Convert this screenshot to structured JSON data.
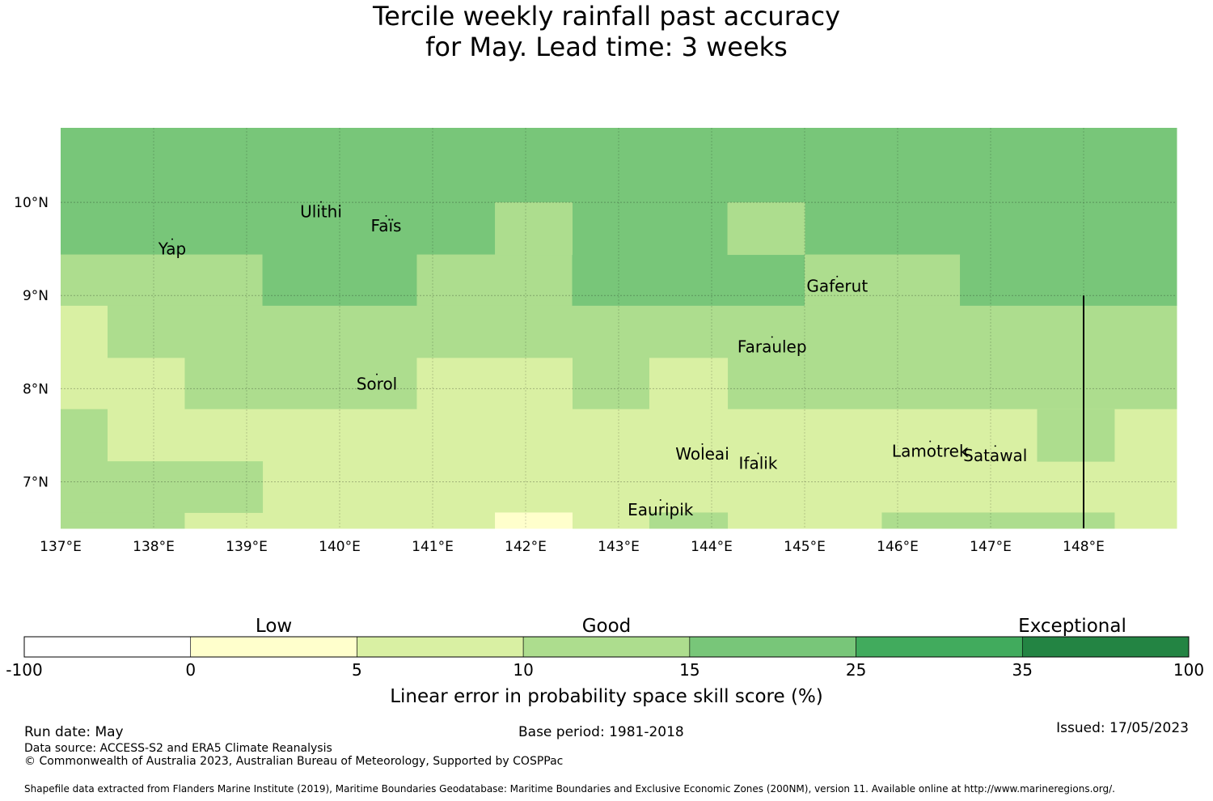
{
  "title_line1": "Tercile weekly rainfall past accuracy",
  "title_line2": "for May. Lead time: 3 weeks",
  "map": {
    "lon_labels": [
      "137°E",
      "138°E",
      "139°E",
      "140°E",
      "141°E",
      "142°E",
      "143°E",
      "144°E",
      "145°E",
      "146°E",
      "147°E",
      "148°E"
    ],
    "lat_labels": [
      "10°N",
      "9°N",
      "8°N",
      "7°N"
    ],
    "places": [
      {
        "name": "Yap",
        "lon": 138.2,
        "lat": 9.5
      },
      {
        "name": "Ulithi",
        "lon": 139.8,
        "lat": 9.9
      },
      {
        "name": "Faïs",
        "lon": 140.5,
        "lat": 9.75
      },
      {
        "name": "Gaferut",
        "lon": 145.35,
        "lat": 9.1
      },
      {
        "name": "Faraulep",
        "lon": 144.65,
        "lat": 8.45
      },
      {
        "name": "Sorol",
        "lon": 140.4,
        "lat": 8.05
      },
      {
        "name": "Woleai",
        "lon": 143.9,
        "lat": 7.3
      },
      {
        "name": "Ifalik",
        "lon": 144.5,
        "lat": 7.2
      },
      {
        "name": "Lamotrek",
        "lon": 146.35,
        "lat": 7.33
      },
      {
        "name": "Satawal",
        "lon": 147.05,
        "lat": 7.28
      },
      {
        "name": "Eauripik",
        "lon": 143.45,
        "lat": 6.7
      }
    ]
  },
  "chart_data": {
    "type": "heatmap",
    "lon_range": [
      137,
      149
    ],
    "lat_range": [
      6.5,
      10.8
    ],
    "category_colors": {
      "1": "#ffffcc",
      "2": "#d9f0a3",
      "3": "#addd8e",
      "4": "#78c679"
    },
    "cells": [
      {
        "lon": [
          137.0,
          149.0
        ],
        "lat": [
          9.44,
          10.8
        ],
        "cat": 4
      },
      {
        "lon": [
          137.0,
          139.17
        ],
        "lat": [
          8.89,
          9.44
        ],
        "cat": 3
      },
      {
        "lon": [
          139.17,
          140.83
        ],
        "lat": [
          8.89,
          9.44
        ],
        "cat": 4
      },
      {
        "lon": [
          140.83,
          142.5
        ],
        "lat": [
          8.89,
          9.44
        ],
        "cat": 3
      },
      {
        "lon": [
          142.5,
          145.0
        ],
        "lat": [
          8.89,
          9.44
        ],
        "cat": 4
      },
      {
        "lon": [
          145.0,
          146.67
        ],
        "lat": [
          8.89,
          9.44
        ],
        "cat": 3
      },
      {
        "lon": [
          146.67,
          149.0
        ],
        "lat": [
          8.89,
          9.44
        ],
        "cat": 4
      },
      {
        "lon": [
          141.67,
          142.5
        ],
        "lat": [
          9.44,
          10.0
        ],
        "cat": 3
      },
      {
        "lon": [
          144.17,
          145.0
        ],
        "lat": [
          9.44,
          10.0
        ],
        "cat": 3
      },
      {
        "lon": [
          137.0,
          149.0
        ],
        "lat": [
          7.78,
          8.89
        ],
        "cat": 3
      },
      {
        "lon": [
          137.0,
          137.5
        ],
        "lat": [
          8.33,
          8.89
        ],
        "cat": 2
      },
      {
        "lon": [
          137.0,
          138.33
        ],
        "lat": [
          7.78,
          8.33
        ],
        "cat": 2
      },
      {
        "lon": [
          140.83,
          142.5
        ],
        "lat": [
          7.78,
          8.33
        ],
        "cat": 2
      },
      {
        "lon": [
          143.33,
          144.17
        ],
        "lat": [
          7.78,
          8.33
        ],
        "cat": 2
      },
      {
        "lon": [
          137.0,
          149.0
        ],
        "lat": [
          6.5,
          7.78
        ],
        "cat": 2
      },
      {
        "lon": [
          137.0,
          137.5
        ],
        "lat": [
          7.22,
          7.78
        ],
        "cat": 3
      },
      {
        "lon": [
          147.5,
          148.33
        ],
        "lat": [
          7.22,
          7.78
        ],
        "cat": 3
      },
      {
        "lon": [
          137.0,
          139.17
        ],
        "lat": [
          6.67,
          7.22
        ],
        "cat": 3
      },
      {
        "lon": [
          137.0,
          138.33
        ],
        "lat": [
          6.5,
          6.67
        ],
        "cat": 3
      },
      {
        "lon": [
          143.33,
          144.17
        ],
        "lat": [
          6.5,
          6.67
        ],
        "cat": 3
      },
      {
        "lon": [
          145.83,
          148.33
        ],
        "lat": [
          6.5,
          6.67
        ],
        "cat": 3
      },
      {
        "lon": [
          141.67,
          142.5
        ],
        "lat": [
          6.5,
          6.67
        ],
        "cat": 1
      }
    ],
    "boundary_line": {
      "lon": 148.0,
      "lat": [
        6.5,
        9.0
      ]
    }
  },
  "legend": {
    "group_labels": [
      "Low",
      "Good",
      "Exceptional"
    ],
    "tick_labels": [
      "-100",
      "0",
      "5",
      "10",
      "15",
      "25",
      "35",
      "100"
    ],
    "colors": [
      "#ffffff",
      "#ffffcc",
      "#d9f0a3",
      "#addd8e",
      "#78c679",
      "#41ab5d",
      "#238443"
    ],
    "axis_label": "Linear error in probability space skill score (%)"
  },
  "footer": {
    "run_date": "Run date: May",
    "base_period": "Base period: 1981-2018",
    "issued": "Issued: 17/05/2023",
    "data_source": "Data source: ACCESS-S2 and ERA5 Climate Reanalysis",
    "copyright": "© Commonwealth of Australia 2023, Australian Bureau of Meteorology, Supported by COSPPac",
    "shapefile": "Shapefile data extracted from Flanders Marine Institute (2019), Maritime Boundaries Geodatabase: Maritime Boundaries and Exclusive Economic Zones (200NM), version 11. Available online at http://www.marineregions.org/."
  }
}
